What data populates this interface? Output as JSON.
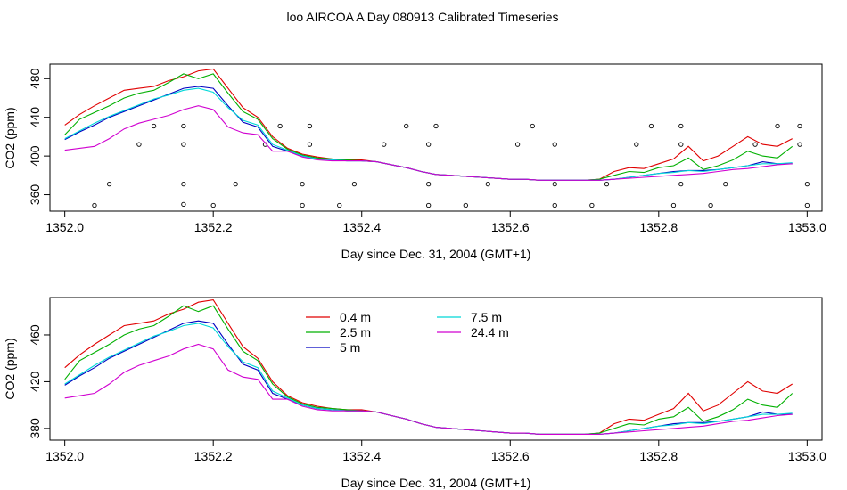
{
  "title": "loo AIRCOA A  Day 080913  Calibrated Timeseries",
  "colors": {
    "0.4 m": "#e00000",
    "2.5 m": "#00b000",
    "5 m": "#0000c0",
    "7.5 m": "#00d8d8",
    "24.4 m": "#d000d0",
    "axis": "#000000"
  },
  "chart_data": [
    {
      "type": "line",
      "xlabel": "Day since Dec. 31, 2004 (GMT+1)",
      "ylabel": "CO2 (ppm)",
      "xlim": [
        1351.98,
        1353.02
      ],
      "ylim": [
        343,
        495
      ],
      "xticks": [
        "1352.0",
        "1352.2",
        "1352.4",
        "1352.6",
        "1352.8",
        "1353.0"
      ],
      "yticks": [
        "360",
        "400",
        "440",
        "480"
      ],
      "grid": false,
      "x": [
        1352.0,
        1352.02,
        1352.04,
        1352.06,
        1352.08,
        1352.1,
        1352.12,
        1352.14,
        1352.16,
        1352.18,
        1352.2,
        1352.22,
        1352.24,
        1352.26,
        1352.28,
        1352.3,
        1352.32,
        1352.34,
        1352.36,
        1352.38,
        1352.4,
        1352.42,
        1352.44,
        1352.46,
        1352.48,
        1352.5,
        1352.52,
        1352.54,
        1352.56,
        1352.58,
        1352.6,
        1352.62,
        1352.64,
        1352.66,
        1352.68,
        1352.7,
        1352.72,
        1352.74,
        1352.76,
        1352.78,
        1352.8,
        1352.82,
        1352.84,
        1352.86,
        1352.88,
        1352.9,
        1352.92,
        1352.94,
        1352.96,
        1352.98
      ],
      "series": [
        {
          "name": "0.4 m",
          "values": [
            432,
            443,
            452,
            460,
            468,
            470,
            472,
            478,
            482,
            488,
            490,
            470,
            450,
            440,
            420,
            408,
            402,
            399,
            397,
            396,
            396,
            394,
            391,
            388,
            384,
            381,
            380,
            379,
            378,
            377,
            376,
            376,
            375,
            375,
            375,
            375,
            376,
            384,
            388,
            387,
            392,
            397,
            410,
            395,
            400,
            410,
            420,
            412,
            410,
            418
          ]
        },
        {
          "name": "2.5 m",
          "values": [
            422,
            438,
            445,
            452,
            460,
            465,
            468,
            476,
            485,
            480,
            485,
            465,
            446,
            438,
            418,
            407,
            401,
            398,
            397,
            396,
            395,
            394,
            391,
            388,
            384,
            381,
            380,
            379,
            378,
            377,
            376,
            376,
            375,
            375,
            375,
            375,
            376,
            380,
            384,
            383,
            388,
            390,
            398,
            386,
            390,
            396,
            405,
            400,
            398,
            410
          ]
        },
        {
          "name": "5 m",
          "values": [
            417,
            425,
            432,
            440,
            446,
            452,
            458,
            464,
            470,
            472,
            470,
            452,
            435,
            430,
            410,
            405,
            400,
            397,
            396,
            395,
            395,
            394,
            391,
            388,
            384,
            381,
            380,
            379,
            378,
            377,
            376,
            376,
            375,
            375,
            375,
            375,
            375,
            376,
            378,
            380,
            382,
            384,
            385,
            385,
            386,
            388,
            390,
            394,
            392,
            392
          ]
        },
        {
          "name": "7.5 m",
          "values": [
            418,
            426,
            434,
            441,
            447,
            453,
            459,
            463,
            468,
            470,
            466,
            450,
            437,
            432,
            412,
            406,
            400,
            397,
            396,
            395,
            395,
            394,
            391,
            388,
            384,
            381,
            380,
            379,
            378,
            377,
            376,
            376,
            375,
            375,
            375,
            375,
            375,
            376,
            378,
            380,
            382,
            383,
            385,
            384,
            386,
            388,
            390,
            392,
            392,
            393
          ]
        },
        {
          "name": "24.4 m",
          "values": [
            406,
            408,
            410,
            418,
            428,
            434,
            438,
            442,
            448,
            452,
            448,
            430,
            424,
            422,
            405,
            405,
            399,
            396,
            395,
            395,
            395,
            394,
            391,
            388,
            384,
            381,
            380,
            379,
            378,
            377,
            376,
            376,
            375,
            375,
            375,
            375,
            375,
            376,
            377,
            378,
            379,
            380,
            381,
            382,
            384,
            386,
            387,
            389,
            391,
            392
          ]
        }
      ],
      "flags": {
        "x": [
          1352.04,
          1352.06,
          1352.1,
          1352.12,
          1352.16,
          1352.16,
          1352.16,
          1352.16,
          1352.2,
          1352.23,
          1352.27,
          1352.29,
          1352.32,
          1352.32,
          1352.33,
          1352.33,
          1352.37,
          1352.39,
          1352.43,
          1352.46,
          1352.49,
          1352.49,
          1352.49,
          1352.5,
          1352.54,
          1352.57,
          1352.61,
          1352.63,
          1352.66,
          1352.66,
          1352.66,
          1352.71,
          1352.73,
          1352.77,
          1352.79,
          1352.82,
          1352.83,
          1352.83,
          1352.83,
          1352.87,
          1352.89,
          1352.93,
          1352.96,
          1352.99,
          1352.99,
          1353.0,
          1353.0
        ],
        "y": [
          349,
          371,
          412,
          431,
          350,
          371,
          412,
          431,
          349,
          371,
          412,
          431,
          349,
          371,
          412,
          431,
          349,
          371,
          412,
          431,
          349,
          371,
          412,
          431,
          349,
          371,
          412,
          431,
          349,
          371,
          412,
          349,
          371,
          412,
          431,
          349,
          371,
          412,
          431,
          349,
          371,
          412,
          431,
          412,
          431,
          371,
          349
        ]
      }
    },
    {
      "type": "line",
      "xlabel": "Day since Dec. 31, 2004 (GMT+1)",
      "ylabel": "CO2 (ppm)",
      "xlim": [
        1351.98,
        1353.02
      ],
      "ylim": [
        370,
        492
      ],
      "xticks": [
        "1352.0",
        "1352.2",
        "1352.4",
        "1352.6",
        "1352.8",
        "1353.0"
      ],
      "yticks": [
        "380",
        "420",
        "460"
      ],
      "grid": false,
      "legend": "top-center",
      "ref": "same series as panel 1"
    }
  ]
}
